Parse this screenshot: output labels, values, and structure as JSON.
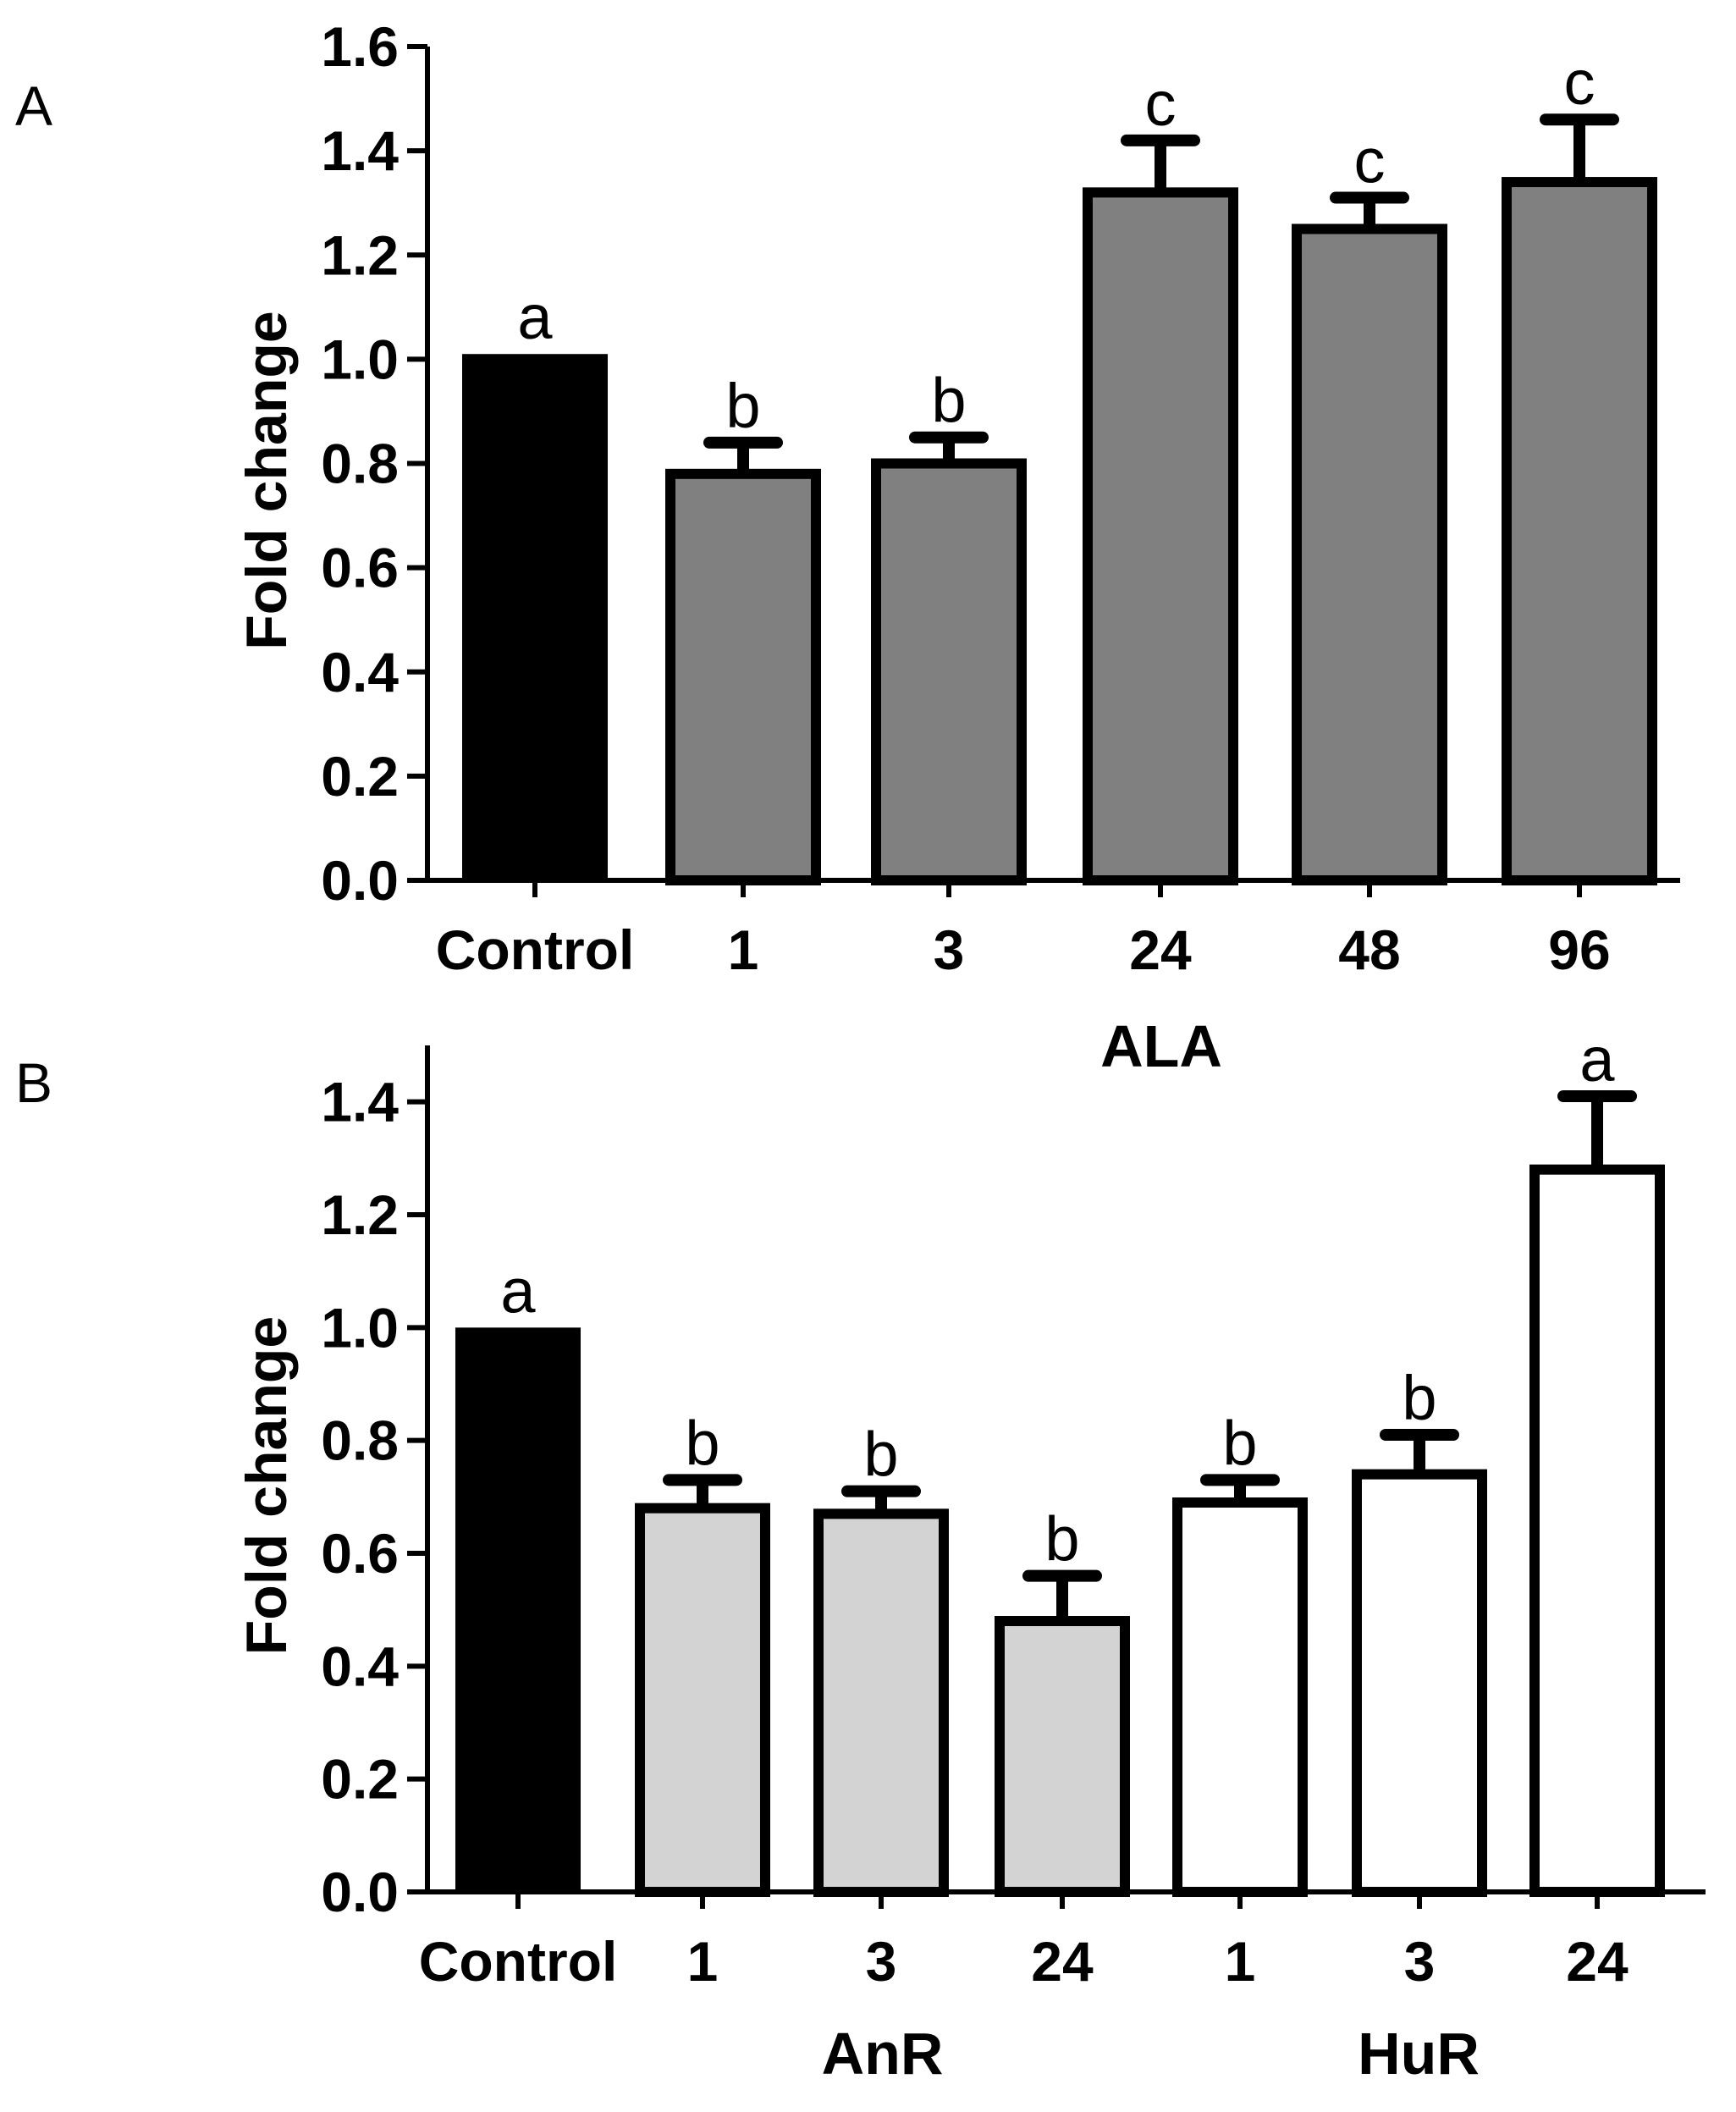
{
  "chart_data": [
    {
      "type": "bar",
      "panel": "A",
      "ylabel": "Fold change",
      "ylim": [
        0,
        1.6
      ],
      "yticks": [
        "0.0",
        "0.2",
        "0.4",
        "0.6",
        "0.8",
        "1.0",
        "1.2",
        "1.4",
        "1.6"
      ],
      "group_labels": [
        {
          "label": "ALA",
          "categories": [
            1,
            2,
            3,
            4,
            5
          ]
        }
      ],
      "categories": [
        "Control",
        "1",
        "3",
        "24",
        "48",
        "96"
      ],
      "values": [
        1.01,
        0.78,
        0.8,
        1.32,
        1.25,
        1.34
      ],
      "errors": [
        0,
        0.06,
        0.05,
        0.1,
        0.06,
        0.12
      ],
      "significance": [
        "a",
        "b",
        "b",
        "c",
        "c",
        "c"
      ],
      "fills": [
        "#000000",
        "#808080",
        "#808080",
        "#808080",
        "#808080",
        "#808080"
      ]
    },
    {
      "type": "bar",
      "panel": "B",
      "ylabel": "Fold change",
      "ylim": [
        0,
        1.5
      ],
      "yticks": [
        "0.0",
        "0.2",
        "0.4",
        "0.6",
        "0.8",
        "1.0",
        "1.2",
        "1.4"
      ],
      "group_labels": [
        {
          "label": "AnR",
          "categories": [
            1,
            2,
            3
          ]
        },
        {
          "label": "HuR",
          "categories": [
            4,
            5,
            6
          ]
        }
      ],
      "categories": [
        "Control",
        "1",
        "3",
        "24",
        "1",
        "3",
        "24"
      ],
      "values": [
        1.0,
        0.68,
        0.67,
        0.48,
        0.69,
        0.74,
        1.28
      ],
      "errors": [
        0,
        0.05,
        0.04,
        0.08,
        0.04,
        0.07,
        0.13
      ],
      "significance": [
        "a",
        "b",
        "b",
        "b",
        "b",
        "b",
        "a"
      ],
      "fills": [
        "#000000",
        "#d3d3d3",
        "#d3d3d3",
        "#d3d3d3",
        "#ffffff",
        "#ffffff",
        "#ffffff"
      ]
    }
  ]
}
